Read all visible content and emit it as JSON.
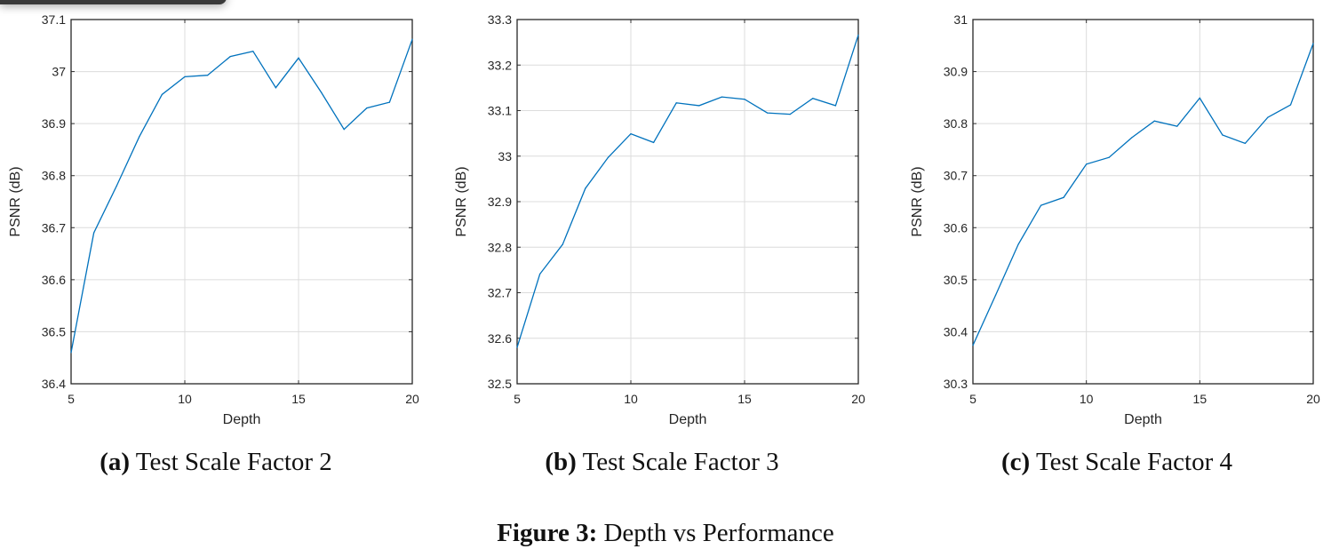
{
  "chart_data": [
    {
      "type": "line",
      "title": "",
      "xlabel": "Depth",
      "ylabel": "PSNR (dB)",
      "xlim": [
        5,
        20
      ],
      "ylim": [
        36.4,
        37.1
      ],
      "xticks": [
        "5",
        "10",
        "15",
        "20"
      ],
      "yticks": [
        "36.4",
        "36.5",
        "36.6",
        "36.7",
        "36.8",
        "36.9",
        "37",
        "37.1"
      ],
      "grid": true,
      "color": "#0072BD",
      "x": [
        5,
        6,
        7,
        8,
        9,
        10,
        11,
        12,
        13,
        14,
        15,
        16,
        17,
        18,
        19,
        20
      ],
      "values": [
        36.46,
        36.69,
        36.78,
        36.875,
        36.956,
        36.99,
        36.993,
        37.029,
        37.039,
        36.969,
        37.026,
        36.96,
        36.889,
        36.93,
        36.941,
        37.062
      ],
      "caption_label": "(a)",
      "caption_text": "Test Scale Factor 2"
    },
    {
      "type": "line",
      "title": "",
      "xlabel": "Depth",
      "ylabel": "PSNR (dB)",
      "xlim": [
        5,
        20
      ],
      "ylim": [
        32.5,
        33.3
      ],
      "xticks": [
        "5",
        "10",
        "15",
        "20"
      ],
      "yticks": [
        "32.5",
        "32.6",
        "32.7",
        "32.8",
        "32.9",
        "33",
        "33.1",
        "33.2",
        "33.3"
      ],
      "grid": true,
      "color": "#0072BD",
      "x": [
        5,
        6,
        7,
        8,
        9,
        10,
        11,
        12,
        13,
        14,
        15,
        16,
        17,
        18,
        19,
        20
      ],
      "values": [
        32.58,
        32.741,
        32.806,
        32.929,
        32.997,
        33.049,
        33.03,
        33.117,
        33.111,
        33.13,
        33.125,
        33.095,
        33.092,
        33.127,
        33.111,
        33.266
      ],
      "caption_label": "(b)",
      "caption_text": "Test Scale Factor 3"
    },
    {
      "type": "line",
      "title": "",
      "xlabel": "Depth",
      "ylabel": "PSNR (dB)",
      "xlim": [
        5,
        20
      ],
      "ylim": [
        30.3,
        31
      ],
      "xticks": [
        "5",
        "10",
        "15",
        "20"
      ],
      "yticks": [
        "30.3",
        "30.4",
        "30.5",
        "30.6",
        "30.7",
        "30.8",
        "30.9",
        "31"
      ],
      "grid": true,
      "color": "#0072BD",
      "x": [
        5,
        6,
        7,
        8,
        9,
        10,
        11,
        12,
        13,
        14,
        15,
        16,
        17,
        18,
        19,
        20
      ],
      "values": [
        30.374,
        30.47,
        30.568,
        30.643,
        30.658,
        30.722,
        30.735,
        30.773,
        30.805,
        30.795,
        30.849,
        30.778,
        30.762,
        30.812,
        30.836,
        30.954
      ],
      "caption_label": "(c)",
      "caption_text": "Test Scale Factor 4"
    }
  ],
  "figure": {
    "label": "Figure 3:",
    "text": "Depth vs Performance"
  }
}
